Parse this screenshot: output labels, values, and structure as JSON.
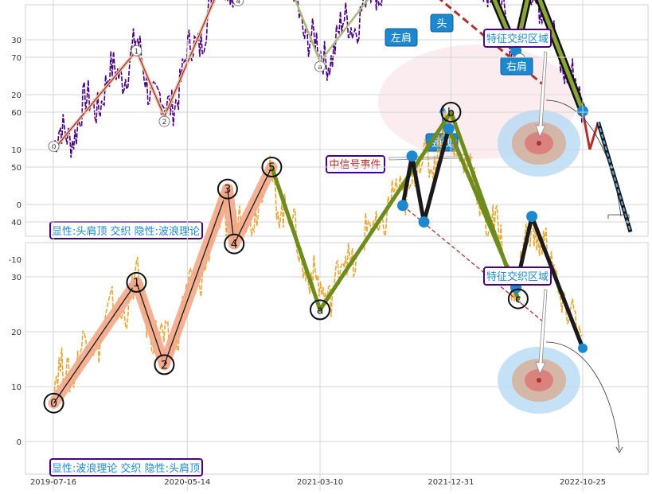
{
  "chart_data": [
    {
      "type": "line",
      "x_ticks": [
        "2019-07-16",
        "2020-05-14",
        "2021-03-10",
        "2021-12-31",
        "2022-10-25"
      ],
      "y_ticks": [
        -10,
        0,
        10,
        20,
        30,
        40,
        50,
        60,
        70
      ],
      "ylim": [
        -12,
        72
      ],
      "grid": true,
      "wave_points": [
        {
          "label": "0",
          "x": "2019-07-17",
          "y": 10
        },
        {
          "label": "1",
          "x": "2020-01-20",
          "y": 28
        },
        {
          "label": "2",
          "x": "2020-03-23",
          "y": 16
        },
        {
          "label": "3",
          "x": "2020-08-13",
          "y": 43
        },
        {
          "label": "4",
          "x": "2020-08-28",
          "y": 38
        },
        {
          "label": "5",
          "x": "2020-11-21",
          "y": 48
        },
        {
          "label": "a",
          "x": "2021-03-10",
          "y": 26
        },
        {
          "label": "b",
          "x": "2021-12-31",
          "y": 57
        },
        {
          "label": "c",
          "x": "2022-06-01",
          "y": 28
        }
      ],
      "pattern_points": [
        {
          "x": "2021-09-13",
          "y": 43
        },
        {
          "x": "2021-10-04",
          "y": 52
        },
        {
          "x": "2021-10-31",
          "y": 40
        },
        {
          "x": "2021-12-26",
          "y": 57
        },
        {
          "x": "2022-05-27",
          "y": 28
        },
        {
          "x": "2022-07-02",
          "y": 41
        },
        {
          "x": "2022-10-25",
          "y": 17
        }
      ],
      "neckline": [
        {
          "x": "2021-09-13",
          "y": 43
        },
        {
          "x": "2022-07-25",
          "y": 22
        }
      ],
      "breakdown_path": [
        {
          "x": "2022-10-25",
          "y": 17
        },
        {
          "x": "2022-11-10",
          "y": 10
        },
        {
          "x": "2022-11-29",
          "y": 15
        },
        {
          "x": "2023-02-10",
          "y": -5
        }
      ],
      "annotations": {
        "left_shoulder": "左肩",
        "head": "头",
        "right_shoulder": "右肩",
        "neckline": "颈线",
        "signal": "中信号事件",
        "zone": "特征交织区域",
        "caption": "显性:头肩顶 交织 隐性:波浪理论"
      }
    },
    {
      "type": "line",
      "x_ticks": [
        "2019-07-16",
        "2020-05-14",
        "2021-03-10",
        "2021-12-31",
        "2022-10-25"
      ],
      "y_ticks": [
        -10,
        0,
        10,
        20,
        30,
        40,
        50,
        60,
        70
      ],
      "ylim": [
        -12,
        72
      ],
      "grid": true,
      "wave_points": [
        {
          "label": "0",
          "x": "2019-07-17",
          "y": 7
        },
        {
          "label": "1",
          "x": "2020-01-20",
          "y": 29
        },
        {
          "label": "2",
          "x": "2020-03-23",
          "y": 14
        },
        {
          "label": "3",
          "x": "2020-08-13",
          "y": 46
        },
        {
          "label": "4",
          "x": "2020-08-28",
          "y": 36
        },
        {
          "label": "5",
          "x": "2020-11-21",
          "y": 50
        },
        {
          "label": "a",
          "x": "2021-03-10",
          "y": 24
        },
        {
          "label": "b",
          "x": "2021-12-31",
          "y": 60
        },
        {
          "label": "c",
          "x": "2022-06-01",
          "y": 26
        }
      ],
      "pattern_points": [
        {
          "x": "2021-09-13",
          "y": 43
        },
        {
          "x": "2021-10-04",
          "y": 52
        },
        {
          "x": "2021-10-31",
          "y": 40
        },
        {
          "x": "2021-12-26",
          "y": 57
        },
        {
          "x": "2022-05-27",
          "y": 28
        },
        {
          "x": "2022-07-02",
          "y": 41
        },
        {
          "x": "2022-10-25",
          "y": 17
        }
      ],
      "neckline": [
        {
          "x": "2021-09-13",
          "y": 43
        },
        {
          "x": "2022-07-25",
          "y": 22
        }
      ],
      "annotations": {
        "zone": "特征交织区域",
        "caption": "显性:波浪理论 交织 隐性:头肩顶"
      }
    }
  ],
  "colors": {
    "price_top": "#4b0082",
    "price_bottom": "#e8a93a",
    "wave_line": "#a9b97a",
    "impulse_band": "#f3a98a",
    "pattern_main": "#6e8b1e",
    "node": "#1e88cf",
    "neckline": "#b03030",
    "box_fill": "#1e88cf",
    "caption_border": "#4b0082",
    "caption_text": "#1e88cf"
  }
}
